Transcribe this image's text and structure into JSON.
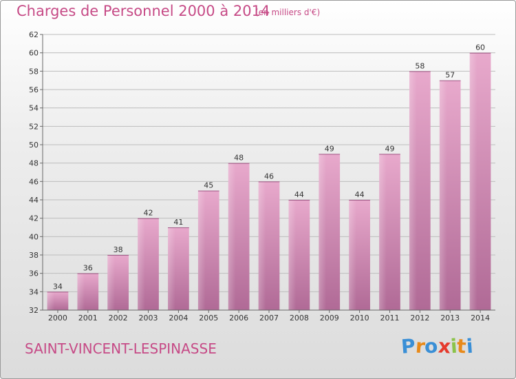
{
  "header": {
    "title": "Charges de Personnel 2000 à 2014",
    "subtitle": "(en milliers d'€)"
  },
  "footer": {
    "commune": "SAINT-VINCENT-LESPINASSE",
    "logo_letters": [
      "P",
      "r",
      "o",
      "x",
      "i",
      "t",
      "i"
    ],
    "logo_colors": [
      "#3a8fd6",
      "#e88a1a",
      "#3a8fd6",
      "#e53a2d",
      "#8bc34a",
      "#e88a1a",
      "#3a8fd6"
    ]
  },
  "colors": {
    "accent": "#c64a86",
    "bar_top": "#e8a9cc",
    "bar_bottom": "#b06a96",
    "grid": "#bdbdbd"
  },
  "chart_data": {
    "type": "bar",
    "categories": [
      "2000",
      "2001",
      "2002",
      "2003",
      "2004",
      "2005",
      "2006",
      "2007",
      "2008",
      "2009",
      "2010",
      "2011",
      "2012",
      "2013",
      "2014"
    ],
    "values": [
      34,
      36,
      38,
      42,
      41,
      45,
      48,
      46,
      44,
      49,
      44,
      49,
      58,
      57,
      60
    ],
    "ylim": [
      32,
      62
    ],
    "ytick_step": 2,
    "grid": true
  }
}
